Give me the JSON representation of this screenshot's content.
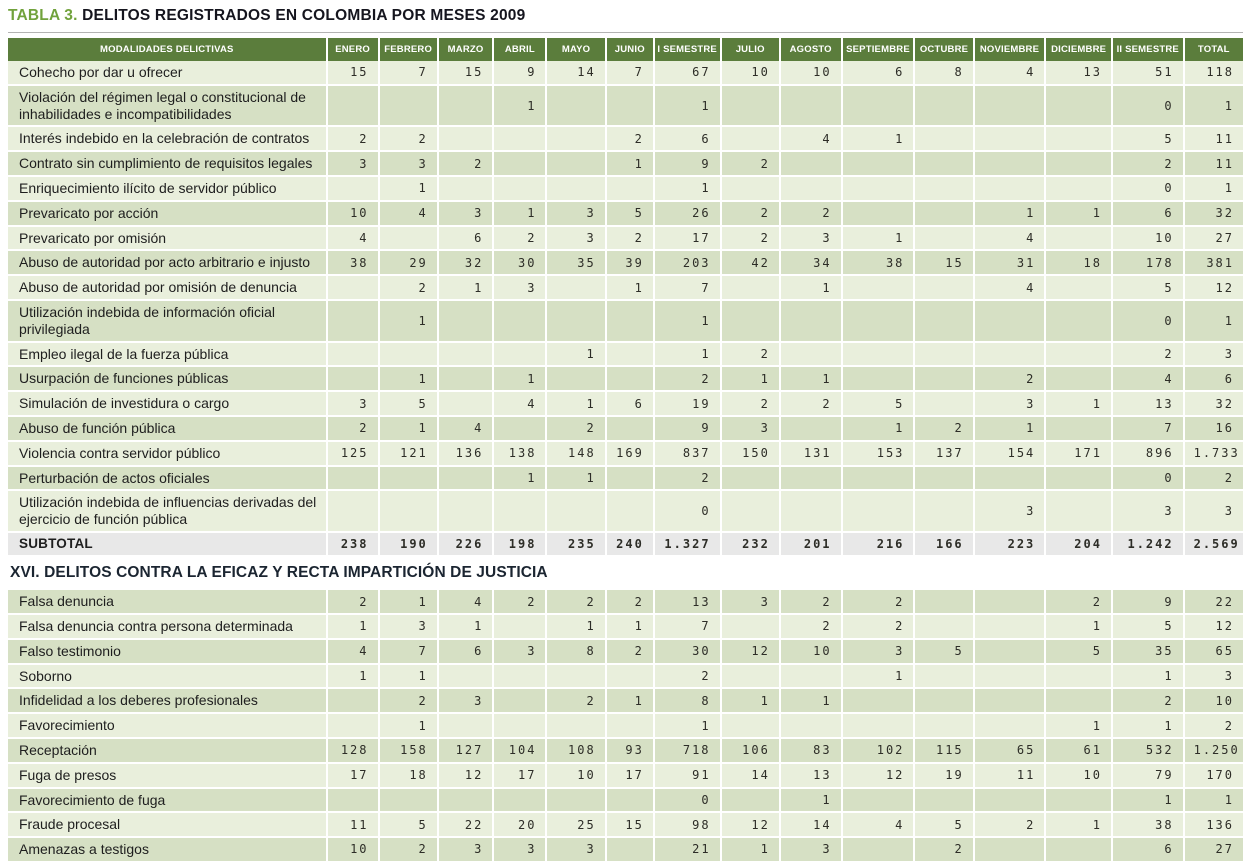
{
  "title": {
    "label": "TABLA 3.",
    "text": "DELITOS REGISTRADOS EN COLOMBIA POR MESES 2009"
  },
  "colors": {
    "header_bg": "#5b7d3c",
    "header_text": "#ffffff",
    "row_light": "#e9efdc",
    "row_dark": "#d6e0c4",
    "subtotal_bg": "#e8e8e8",
    "title_accent": "#71a23c",
    "title_text": "#15151e"
  },
  "table": {
    "columns": [
      "MODALIDADES DELICTIVAS",
      "ENERO",
      "FEBRERO",
      "MARZO",
      "ABRIL",
      "MAYO",
      "JUNIO",
      "I SEMESTRE",
      "JULIO",
      "AGOSTO",
      "SEPTIEMBRE",
      "OCTUBRE",
      "NOVIEMBRE",
      "DICIEMBRE",
      "II SEMESTRE",
      "TOTAL"
    ],
    "rows": [
      {
        "type": "data",
        "name": "Cohecho por dar u ofrecer",
        "values": [
          "15",
          "7",
          "15",
          "9",
          "14",
          "7",
          "67",
          "10",
          "10",
          "6",
          "8",
          "4",
          "13",
          "51",
          "118"
        ]
      },
      {
        "type": "data",
        "name": "Violación del régimen legal o constitucional de inhabilidades e incompatibilidades",
        "values": [
          "",
          "",
          "",
          "1",
          "",
          "",
          "1",
          "",
          "",
          "",
          "",
          "",
          "",
          "0",
          "1"
        ]
      },
      {
        "type": "data",
        "name": "Interés indebido en la celebración de contratos",
        "values": [
          "2",
          "2",
          "",
          "",
          "",
          "2",
          "6",
          "",
          "4",
          "1",
          "",
          "",
          "",
          "5",
          "11"
        ]
      },
      {
        "type": "data",
        "name": "Contrato sin cumplimiento de requisitos legales",
        "values": [
          "3",
          "3",
          "2",
          "",
          "",
          "1",
          "9",
          "2",
          "",
          "",
          "",
          "",
          "",
          "2",
          "11"
        ]
      },
      {
        "type": "data",
        "name": "Enriquecimiento ilícito de servidor público",
        "values": [
          "",
          "1",
          "",
          "",
          "",
          "",
          "1",
          "",
          "",
          "",
          "",
          "",
          "",
          "0",
          "1"
        ]
      },
      {
        "type": "data",
        "name": "Prevaricato por acción",
        "values": [
          "10",
          "4",
          "3",
          "1",
          "3",
          "5",
          "26",
          "2",
          "2",
          "",
          "",
          "1",
          "1",
          "6",
          "32"
        ]
      },
      {
        "type": "data",
        "name": "Prevaricato por omisión",
        "values": [
          "4",
          "",
          "6",
          "2",
          "3",
          "2",
          "17",
          "2",
          "3",
          "1",
          "",
          "4",
          "",
          "10",
          "27"
        ]
      },
      {
        "type": "data",
        "name": "Abuso de autoridad por acto arbitrario e injusto",
        "values": [
          "38",
          "29",
          "32",
          "30",
          "35",
          "39",
          "203",
          "42",
          "34",
          "38",
          "15",
          "31",
          "18",
          "178",
          "381"
        ]
      },
      {
        "type": "data",
        "name": "Abuso de autoridad por omisión de denuncia",
        "values": [
          "",
          "2",
          "1",
          "3",
          "",
          "1",
          "7",
          "",
          "1",
          "",
          "",
          "4",
          "",
          "5",
          "12"
        ]
      },
      {
        "type": "data",
        "name": "Utilización indebida de información oficial privilegiada",
        "values": [
          "",
          "1",
          "",
          "",
          "",
          "",
          "1",
          "",
          "",
          "",
          "",
          "",
          "",
          "0",
          "1"
        ]
      },
      {
        "type": "data",
        "name": "Empleo ilegal de la fuerza pública",
        "values": [
          "",
          "",
          "",
          "",
          "1",
          "",
          "1",
          "2",
          "",
          "",
          "",
          "",
          "",
          "2",
          "3"
        ]
      },
      {
        "type": "data",
        "name": "Usurpación de funciones públicas",
        "values": [
          "",
          "1",
          "",
          "1",
          "",
          "",
          "2",
          "1",
          "1",
          "",
          "",
          "2",
          "",
          "4",
          "6"
        ]
      },
      {
        "type": "data",
        "name": "Simulación de investidura o cargo",
        "values": [
          "3",
          "5",
          "",
          "4",
          "1",
          "6",
          "19",
          "2",
          "2",
          "5",
          "",
          "3",
          "1",
          "13",
          "32"
        ]
      },
      {
        "type": "data",
        "name": "Abuso de función pública",
        "values": [
          "2",
          "1",
          "4",
          "",
          "2",
          "",
          "9",
          "3",
          "",
          "1",
          "2",
          "1",
          "",
          "7",
          "16"
        ]
      },
      {
        "type": "data",
        "name": "Violencia contra servidor público",
        "values": [
          "125",
          "121",
          "136",
          "138",
          "148",
          "169",
          "837",
          "150",
          "131",
          "153",
          "137",
          "154",
          "171",
          "896",
          "1.733"
        ]
      },
      {
        "type": "data",
        "name": "Perturbación de actos oficiales",
        "values": [
          "",
          "",
          "",
          "1",
          "1",
          "",
          "2",
          "",
          "",
          "",
          "",
          "",
          "",
          "0",
          "2"
        ]
      },
      {
        "type": "data",
        "name": "Utilización indebida de influencias derivadas del ejercicio de función pública",
        "values": [
          "",
          "",
          "",
          "",
          "",
          "",
          "0",
          "",
          "",
          "",
          "",
          "3",
          "",
          "3",
          "3"
        ]
      },
      {
        "type": "subtotal",
        "name": "SUBTOTAL",
        "values": [
          "238",
          "190",
          "226",
          "198",
          "235",
          "240",
          "1.327",
          "232",
          "201",
          "216",
          "166",
          "223",
          "204",
          "1.242",
          "2.569"
        ]
      },
      {
        "type": "section",
        "name": "XVI. DELITOS CONTRA LA EFICAZ Y RECTA IMPARTICIÓN DE JUSTICIA",
        "values": []
      },
      {
        "type": "data",
        "name": "Falsa denuncia",
        "values": [
          "2",
          "1",
          "4",
          "2",
          "2",
          "2",
          "13",
          "3",
          "2",
          "2",
          "",
          "",
          "2",
          "9",
          "22"
        ]
      },
      {
        "type": "data",
        "name": "Falsa denuncia contra persona determinada",
        "values": [
          "1",
          "3",
          "1",
          "",
          "1",
          "1",
          "7",
          "",
          "2",
          "2",
          "",
          "",
          "1",
          "5",
          "12"
        ]
      },
      {
        "type": "data",
        "name": "Falso testimonio",
        "values": [
          "4",
          "7",
          "6",
          "3",
          "8",
          "2",
          "30",
          "12",
          "10",
          "3",
          "5",
          "",
          "5",
          "35",
          "65"
        ]
      },
      {
        "type": "data",
        "name": "Soborno",
        "values": [
          "1",
          "1",
          "",
          "",
          "",
          "",
          "2",
          "",
          "",
          "1",
          "",
          "",
          "",
          "1",
          "3"
        ]
      },
      {
        "type": "data",
        "name": "Infidelidad a los deberes profesionales",
        "values": [
          "",
          "2",
          "3",
          "",
          "2",
          "1",
          "8",
          "1",
          "1",
          "",
          "",
          "",
          "",
          "2",
          "10"
        ]
      },
      {
        "type": "data",
        "name": "Favorecimiento",
        "values": [
          "",
          "1",
          "",
          "",
          "",
          "",
          "1",
          "",
          "",
          "",
          "",
          "",
          "1",
          "1",
          "2"
        ]
      },
      {
        "type": "data",
        "name": "Receptación",
        "values": [
          "128",
          "158",
          "127",
          "104",
          "108",
          "93",
          "718",
          "106",
          "83",
          "102",
          "115",
          "65",
          "61",
          "532",
          "1.250"
        ]
      },
      {
        "type": "data",
        "name": "Fuga de presos",
        "values": [
          "17",
          "18",
          "12",
          "17",
          "10",
          "17",
          "91",
          "14",
          "13",
          "12",
          "19",
          "11",
          "10",
          "79",
          "170"
        ]
      },
      {
        "type": "data",
        "name": "Favorecimiento de fuga",
        "values": [
          "",
          "",
          "",
          "",
          "",
          "",
          "0",
          "",
          "1",
          "",
          "",
          "",
          "",
          "1",
          "1"
        ]
      },
      {
        "type": "data",
        "name": "Fraude procesal",
        "values": [
          "11",
          "5",
          "22",
          "20",
          "25",
          "15",
          "98",
          "12",
          "14",
          "4",
          "5",
          "2",
          "1",
          "38",
          "136"
        ]
      },
      {
        "type": "data",
        "name": "Amenazas a testigos",
        "values": [
          "10",
          "2",
          "3",
          "3",
          "3",
          "",
          "21",
          "1",
          "3",
          "",
          "2",
          "",
          "",
          "6",
          "27"
        ]
      }
    ]
  }
}
